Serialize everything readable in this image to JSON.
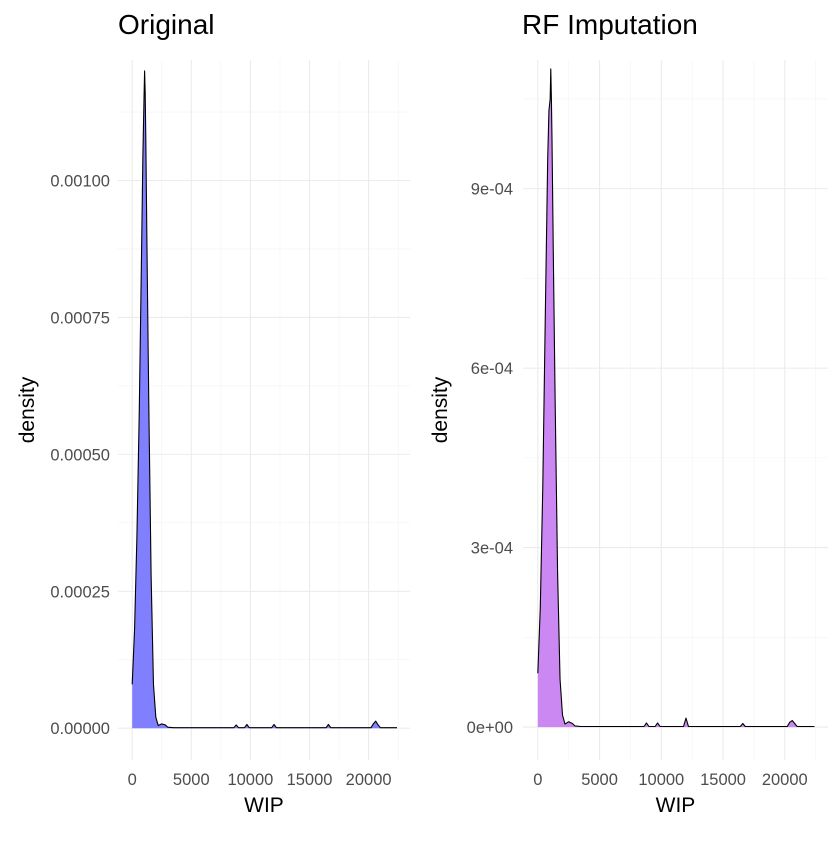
{
  "chart_data": [
    {
      "type": "area",
      "title": "Original",
      "xlabel": "WIP",
      "ylabel": "density",
      "xlim": [
        -1200,
        23500
      ],
      "ylim": [
        -5.8e-05,
        0.00122
      ],
      "x_ticks": [
        0,
        5000,
        10000,
        15000,
        20000
      ],
      "x_tick_labels": [
        "0",
        "5000",
        "10000",
        "15000",
        "20000"
      ],
      "y_ticks": [
        0,
        0.00025,
        0.0005,
        0.00075,
        0.001
      ],
      "y_tick_labels": [
        "0.00000",
        "0.00025",
        "0.00050",
        "0.00075",
        "0.00100"
      ],
      "grid": true,
      "fill_color": "#8080ff",
      "series": [
        {
          "x": [
            0,
            200,
            400,
            600,
            800,
            900,
            1000,
            1050,
            1100,
            1150,
            1250,
            1400,
            1600,
            1800,
            2000,
            2200,
            2500,
            2800,
            3000,
            3500,
            5000,
            8600,
            8800,
            9000,
            9500,
            9700,
            9900,
            10500,
            11800,
            12000,
            12200,
            13000,
            16400,
            16600,
            16800,
            17500,
            20200,
            20400,
            20600,
            20800,
            21000,
            21500,
            22000,
            22400
          ],
          "y": [
            8e-05,
            0.00018,
            0.00035,
            0.00058,
            0.00088,
            0.00104,
            0.00115,
            0.0012,
            0.00116,
            0.00108,
            0.00088,
            0.0006,
            0.00028,
            8e-05,
            2e-05,
            5e-06,
            8e-06,
            6e-06,
            2e-06,
            1e-06,
            1e-06,
            1e-06,
            6e-06,
            1e-06,
            1e-06,
            7e-06,
            1e-06,
            1e-06,
            1e-06,
            7e-06,
            1e-06,
            1e-06,
            1e-06,
            7e-06,
            1e-06,
            1e-06,
            1e-06,
            8e-06,
            1.3e-05,
            6e-06,
            1e-06,
            1e-06,
            1e-06,
            1e-06
          ]
        }
      ]
    },
    {
      "type": "area",
      "title": "RF Imputation",
      "xlabel": "WIP",
      "ylabel": "density",
      "xlim": [
        -1200,
        23500
      ],
      "ylim": [
        -5.5e-05,
        0.001115
      ],
      "x_ticks": [
        0,
        5000,
        10000,
        15000,
        20000
      ],
      "x_tick_labels": [
        "0",
        "5000",
        "10000",
        "15000",
        "20000"
      ],
      "y_ticks": [
        0,
        0.0003,
        0.0006,
        0.0009
      ],
      "y_tick_labels": [
        "0e+00",
        "3e-04",
        "6e-04",
        "9e-04"
      ],
      "grid": true,
      "fill_color": "#cc88f2",
      "series": [
        {
          "x": [
            0,
            200,
            400,
            600,
            800,
            900,
            1000,
            1050,
            1100,
            1150,
            1250,
            1400,
            1600,
            1800,
            2000,
            2200,
            2500,
            2800,
            3000,
            3500,
            5000,
            8600,
            8800,
            9000,
            9500,
            9700,
            9900,
            10500,
            11800,
            12000,
            12200,
            13000,
            16400,
            16600,
            16800,
            17500,
            20200,
            20400,
            20600,
            20800,
            21000,
            21500,
            22000,
            22400
          ],
          "y": [
            9e-05,
            0.0002,
            0.0004,
            0.00068,
            0.00095,
            0.00103,
            0.00105,
            0.0011,
            0.00105,
            0.00098,
            0.0008,
            0.00055,
            0.00026,
            8e-05,
            2e-05,
            5e-06,
            9e-06,
            6e-06,
            2e-06,
            1e-06,
            1e-06,
            1e-06,
            7e-06,
            1e-06,
            1e-06,
            7e-06,
            1e-06,
            1e-06,
            1e-06,
            1.5e-05,
            1e-06,
            1e-06,
            1e-06,
            6e-06,
            1e-06,
            1e-06,
            1e-06,
            8e-06,
            1.1e-05,
            6e-06,
            1e-06,
            1e-06,
            1e-06,
            1e-06
          ]
        }
      ]
    }
  ]
}
